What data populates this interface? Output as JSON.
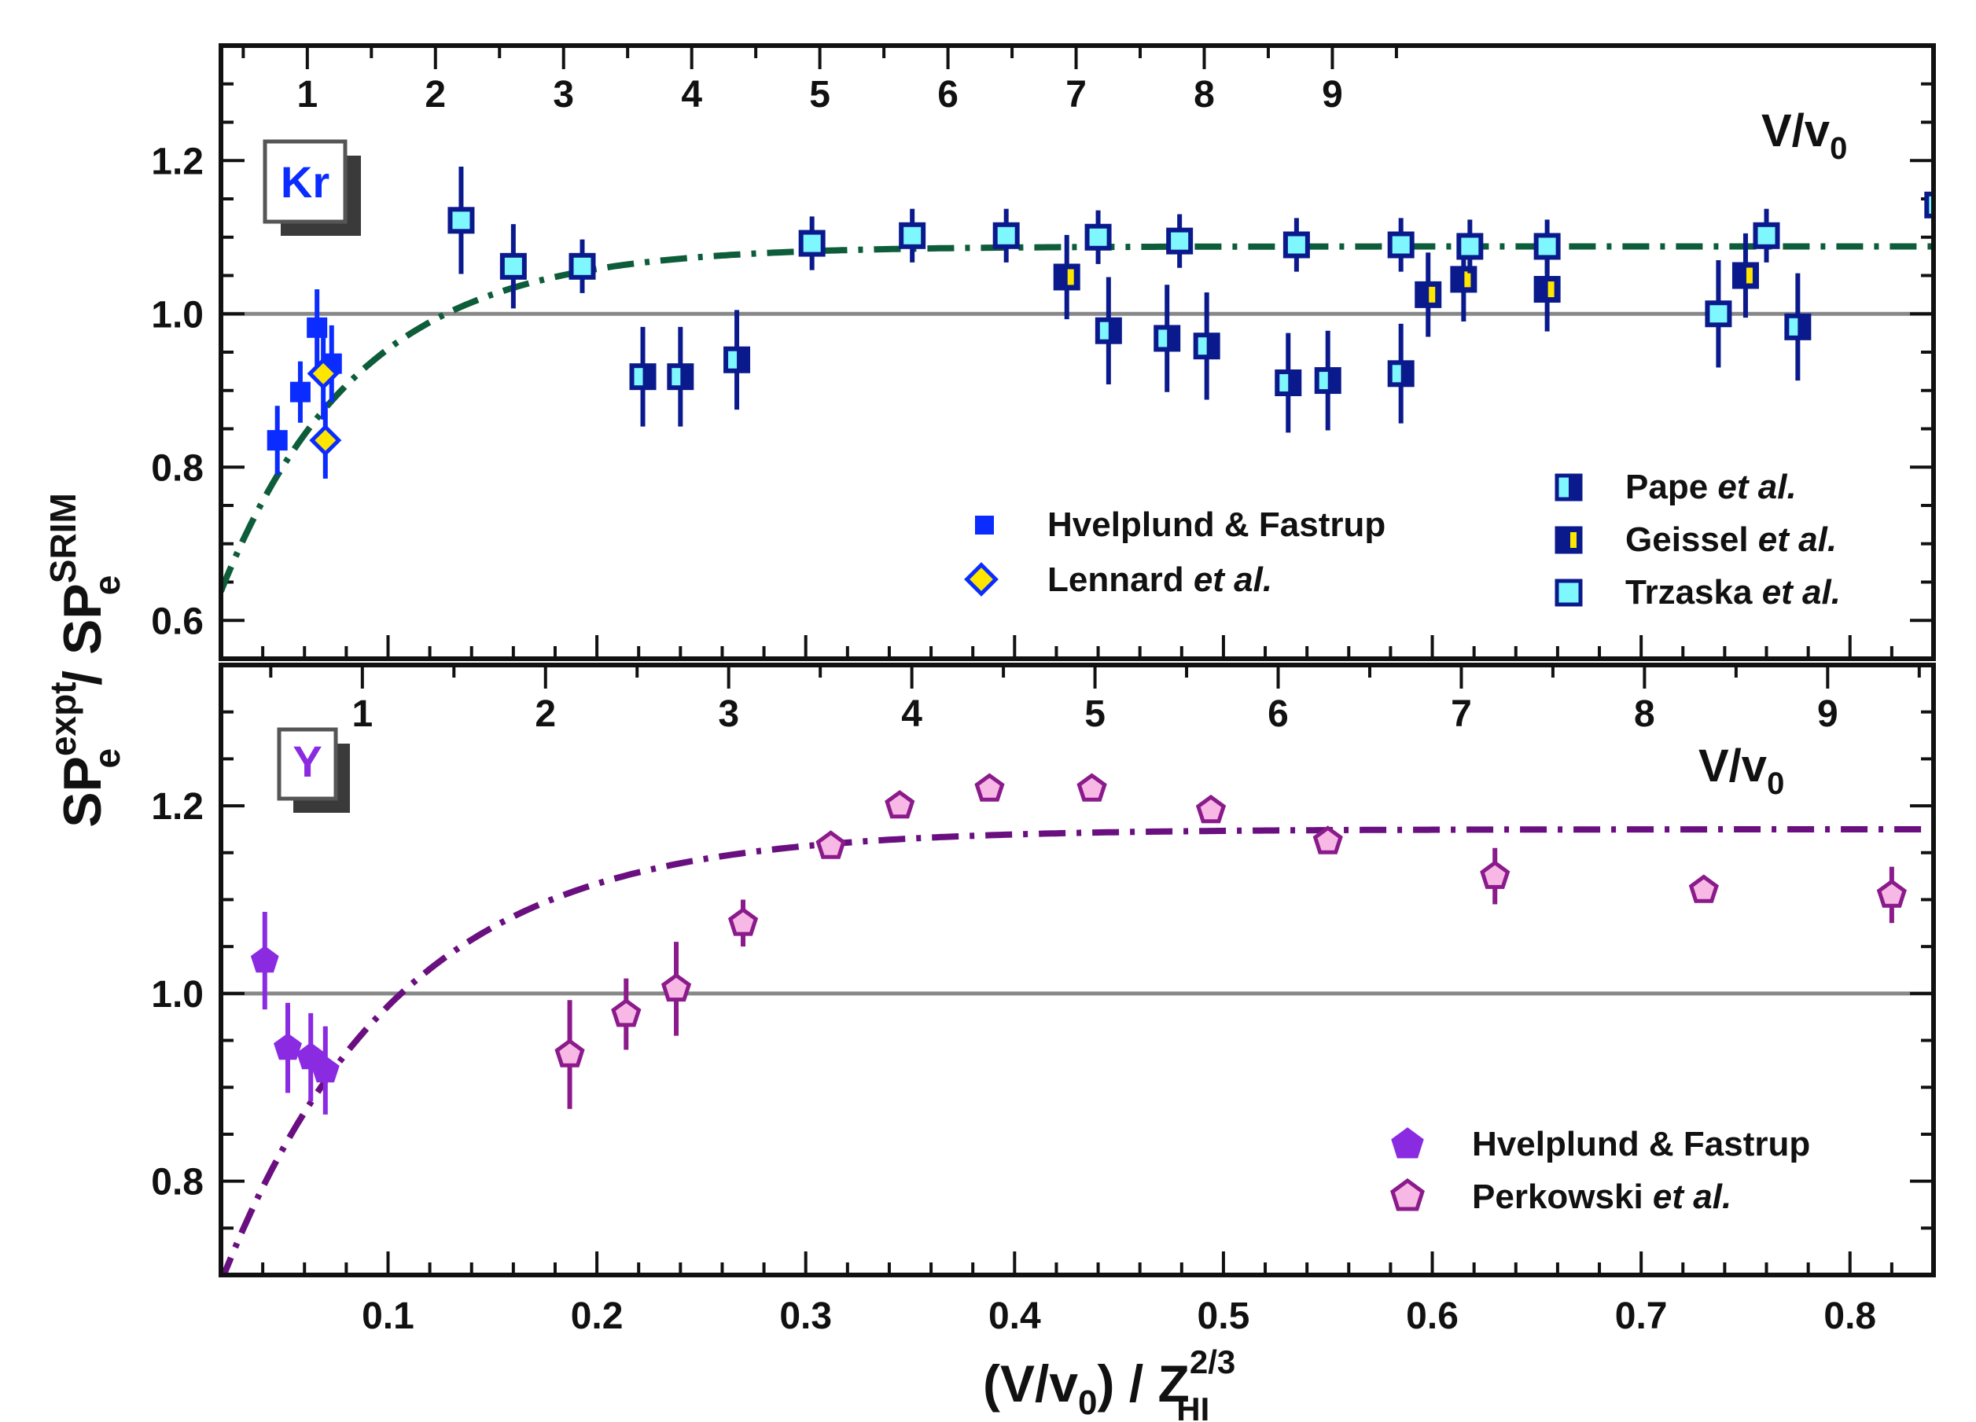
{
  "chart_data": [
    {
      "id": "kr",
      "type": "scatter",
      "panel_label": "Kr",
      "title": "",
      "ylim": [
        0.55,
        1.35
      ],
      "xlim": [
        0.02,
        0.84
      ],
      "yticks": [
        0.6,
        0.8,
        1.0,
        1.2
      ],
      "ytick_labels": [
        "0.6",
        "0.8",
        "1.0",
        "1.2"
      ],
      "top_axis": {
        "label_main": "V/v",
        "label_sub": "0",
        "ticks": [
          1,
          2,
          3,
          4,
          5,
          6,
          7,
          8,
          9
        ],
        "tick_labels": [
          "1",
          "2",
          "3",
          "4",
          "5",
          "6",
          "7",
          "8",
          "9"
        ],
        "scale": 0.06135
      },
      "reference_line": 1.0,
      "series": [
        {
          "name": "Hvelplund & Fastrup",
          "name_italic": "",
          "marker": "square-filled",
          "color": "#0a2cff",
          "x": [
            0.047,
            0.058,
            0.066,
            0.073
          ],
          "y": [
            0.835,
            0.898,
            0.982,
            0.935
          ],
          "err": [
            0.045,
            0.04,
            0.05,
            0.05
          ]
        },
        {
          "name": "Lennard",
          "name_italic": "et al.",
          "marker": "diamond-yellow",
          "color": "#0a2cff",
          "x": [
            0.069,
            0.07
          ],
          "y": [
            0.922,
            0.835
          ],
          "err": [
            0.06,
            0.05
          ]
        },
        {
          "name": "Pape",
          "name_italic": "et al.",
          "marker": "square-half-cyan",
          "color": "#0a1a8c",
          "x": [
            0.222,
            0.24,
            0.267,
            0.445,
            0.473,
            0.492,
            0.531,
            0.55,
            0.585,
            0.775
          ],
          "y": [
            0.918,
            0.918,
            0.94,
            0.978,
            0.968,
            0.958,
            0.91,
            0.913,
            0.922,
            0.983
          ],
          "err": [
            0.065,
            0.065,
            0.065,
            0.07,
            0.07,
            0.07,
            0.065,
            0.065,
            0.065,
            0.07
          ]
        },
        {
          "name": "Geissel",
          "name_italic": "et al.",
          "marker": "square-half-yellow",
          "color": "#0a1a8c",
          "x": [
            0.425,
            0.598,
            0.615,
            0.655,
            0.75
          ],
          "y": [
            1.048,
            1.025,
            1.045,
            1.032,
            1.05
          ],
          "err": [
            0.055,
            0.055,
            0.055,
            0.055,
            0.055
          ]
        },
        {
          "name": "Trzaska",
          "name_italic": "et al.",
          "marker": "square-cyan",
          "color": "#0a1a8c",
          "x": [
            0.135,
            0.16,
            0.193,
            0.303,
            0.351,
            0.396,
            0.44,
            0.479,
            0.535,
            0.585,
            0.618,
            0.655,
            0.737,
            0.76,
            0.842
          ],
          "y": [
            1.122,
            1.062,
            1.062,
            1.092,
            1.102,
            1.102,
            1.1,
            1.095,
            1.09,
            1.09,
            1.088,
            1.088,
            1.0,
            1.102,
            1.142
          ],
          "err": [
            0.07,
            0.055,
            0.035,
            0.035,
            0.035,
            0.035,
            0.035,
            0.035,
            0.035,
            0.035,
            0.035,
            0.035,
            0.07,
            0.035,
            0.035
          ]
        }
      ],
      "fit": {
        "name": "fit",
        "color": "#0d5c3a",
        "a": 1.088,
        "b": 0.56,
        "c": 0.066
      }
    },
    {
      "id": "y",
      "type": "scatter",
      "panel_label": "Y",
      "title": "",
      "ylim": [
        0.7,
        1.35
      ],
      "xlim": [
        0.02,
        0.84
      ],
      "yticks": [
        0.8,
        1.0,
        1.2
      ],
      "ytick_labels": [
        "0.8",
        "1.0",
        "1.2"
      ],
      "top_axis": {
        "label_main": "V/v",
        "label_sub": "0",
        "ticks": [
          1,
          2,
          3,
          4,
          5,
          6,
          7,
          8,
          9
        ],
        "tick_labels": [
          "1",
          "2",
          "3",
          "4",
          "5",
          "6",
          "7",
          "8",
          "9"
        ],
        "scale": 0.0877
      },
      "reference_line": 1.0,
      "series": [
        {
          "name": "Hvelplund & Fastrup",
          "name_italic": "",
          "marker": "pentagon-filled",
          "color": "#8a2be2",
          "x": [
            0.041,
            0.052,
            0.063,
            0.07
          ],
          "y": [
            1.035,
            0.942,
            0.932,
            0.918
          ],
          "err": [
            0.052,
            0.048,
            0.047,
            0.047
          ]
        },
        {
          "name": "Perkowski",
          "name_italic": "et al.",
          "marker": "pentagon-pink",
          "color": "#8b1a8b",
          "x": [
            0.187,
            0.214,
            0.238,
            0.27,
            0.312,
            0.345,
            0.388,
            0.437,
            0.494,
            0.55,
            0.63,
            0.73,
            0.82
          ],
          "y": [
            0.935,
            0.978,
            1.005,
            1.075,
            1.157,
            1.2,
            1.218,
            1.218,
            1.195,
            1.162,
            1.125,
            1.11,
            1.105
          ],
          "err": [
            0.058,
            0.038,
            0.05,
            0.025,
            0.0,
            0.0,
            0.0,
            0.0,
            0.0,
            0.0,
            0.03,
            0.0,
            0.03
          ]
        }
      ],
      "fit": {
        "name": "fit",
        "color": "#6a0f80",
        "a": 1.175,
        "b": 0.52,
        "c": 0.085
      }
    }
  ],
  "shared_x_axis": {
    "ticks": [
      0.1,
      0.2,
      0.3,
      0.4,
      0.5,
      0.6,
      0.7,
      0.8
    ],
    "tick_labels": [
      "0.1",
      "0.2",
      "0.3",
      "0.4",
      "0.5",
      "0.6",
      "0.7",
      "0.8"
    ],
    "label": {
      "lparen": "(V/v",
      "sub0": "0",
      "rest": ") / Z",
      "sup": "2/3",
      "sub": "HI"
    }
  },
  "y_axis_title": {
    "sp1": "SP",
    "sup1": "expt",
    "sub1": "e",
    "slash": "/",
    "sp2": "SP",
    "sup2": "SRIM",
    "sub2": "e"
  }
}
